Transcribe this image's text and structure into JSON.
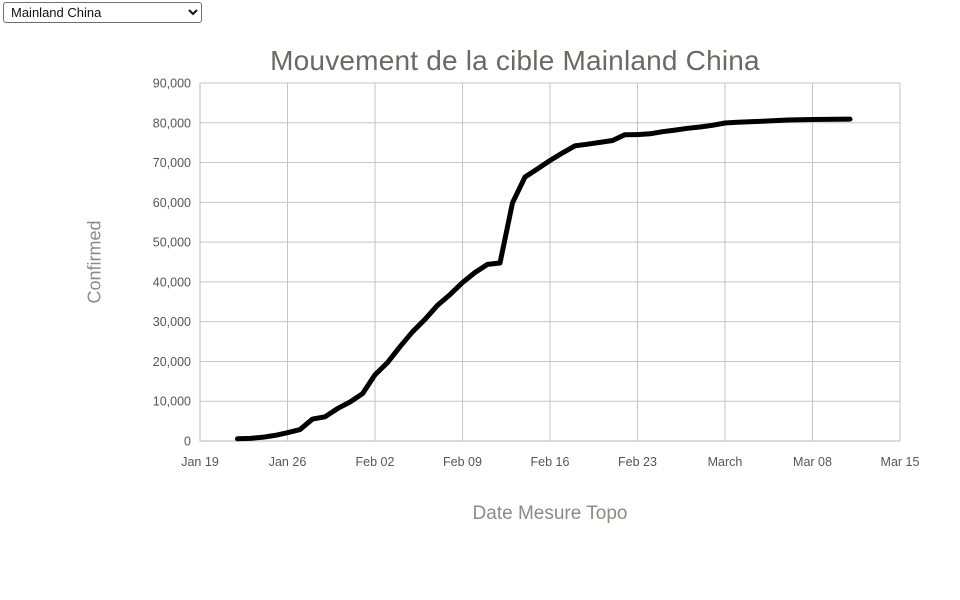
{
  "region_selector": {
    "selected": "Mainland China",
    "options": [
      "Mainland China"
    ]
  },
  "chart_data": {
    "type": "line",
    "title": "Mouvement de la cible Mainland China",
    "xlabel": "Date Mesure Topo",
    "ylabel": "Confirmed",
    "ylim": [
      0,
      90000
    ],
    "xlim": [
      "2020-01-19",
      "2020-03-15"
    ],
    "grid": true,
    "legend": "none",
    "colors": {
      "line": "#000000",
      "grid": "#c5c7bf",
      "tick_text": "#55565a",
      "title_text": "#6d6862",
      "axis_label_text": "#8f8a82"
    },
    "line_width": 5,
    "x_ticks": [
      {
        "date": "2020-01-19",
        "label": "Jan 19"
      },
      {
        "date": "2020-01-26",
        "label": "Jan 26"
      },
      {
        "date": "2020-02-02",
        "label": "Feb 02"
      },
      {
        "date": "2020-02-09",
        "label": "Feb 09"
      },
      {
        "date": "2020-02-16",
        "label": "Feb 16"
      },
      {
        "date": "2020-02-23",
        "label": "Feb 23"
      },
      {
        "date": "2020-03-01",
        "label": "March"
      },
      {
        "date": "2020-03-08",
        "label": "Mar 08"
      },
      {
        "date": "2020-03-15",
        "label": "Mar 15"
      }
    ],
    "y_ticks": [
      {
        "value": 0,
        "label": "0"
      },
      {
        "value": 10000,
        "label": "10,000"
      },
      {
        "value": 20000,
        "label": "20,000"
      },
      {
        "value": 30000,
        "label": "30,000"
      },
      {
        "value": 40000,
        "label": "40,000"
      },
      {
        "value": 50000,
        "label": "50,000"
      },
      {
        "value": 60000,
        "label": "60,000"
      },
      {
        "value": 70000,
        "label": "70,000"
      },
      {
        "value": 80000,
        "label": "80,000"
      },
      {
        "value": 90000,
        "label": "90,000"
      }
    ],
    "series": [
      {
        "name": "Mainland China",
        "points": [
          [
            "2020-01-22",
            548
          ],
          [
            "2020-01-23",
            643
          ],
          [
            "2020-01-24",
            920
          ],
          [
            "2020-01-25",
            1406
          ],
          [
            "2020-01-26",
            2075
          ],
          [
            "2020-01-27",
            2877
          ],
          [
            "2020-01-28",
            5509
          ],
          [
            "2020-01-29",
            6087
          ],
          [
            "2020-01-30",
            8141
          ],
          [
            "2020-01-31",
            9802
          ],
          [
            "2020-02-01",
            11891
          ],
          [
            "2020-02-02",
            16630
          ],
          [
            "2020-02-03",
            19716
          ],
          [
            "2020-02-04",
            23707
          ],
          [
            "2020-02-05",
            27440
          ],
          [
            "2020-02-06",
            30587
          ],
          [
            "2020-02-07",
            34110
          ],
          [
            "2020-02-08",
            36814
          ],
          [
            "2020-02-09",
            39829
          ],
          [
            "2020-02-10",
            42354
          ],
          [
            "2020-02-11",
            44386
          ],
          [
            "2020-02-12",
            44759
          ],
          [
            "2020-02-13",
            59895
          ],
          [
            "2020-02-14",
            66358
          ],
          [
            "2020-02-15",
            68413
          ],
          [
            "2020-02-16",
            70513
          ],
          [
            "2020-02-17",
            72434
          ],
          [
            "2020-02-18",
            74211
          ],
          [
            "2020-02-19",
            74619
          ],
          [
            "2020-02-20",
            75077
          ],
          [
            "2020-02-21",
            75550
          ],
          [
            "2020-02-22",
            77001
          ],
          [
            "2020-02-23",
            77022
          ],
          [
            "2020-02-24",
            77241
          ],
          [
            "2020-02-25",
            77754
          ],
          [
            "2020-02-26",
            78166
          ],
          [
            "2020-02-27",
            78600
          ],
          [
            "2020-02-28",
            78928
          ],
          [
            "2020-02-29",
            79356
          ],
          [
            "2020-03-01",
            79932
          ],
          [
            "2020-03-02",
            80136
          ],
          [
            "2020-03-03",
            80261
          ],
          [
            "2020-03-04",
            80386
          ],
          [
            "2020-03-05",
            80537
          ],
          [
            "2020-03-06",
            80690
          ],
          [
            "2020-03-07",
            80770
          ],
          [
            "2020-03-08",
            80823
          ],
          [
            "2020-03-09",
            80860
          ],
          [
            "2020-03-10",
            80887
          ],
          [
            "2020-03-11",
            80921
          ]
        ]
      }
    ]
  }
}
